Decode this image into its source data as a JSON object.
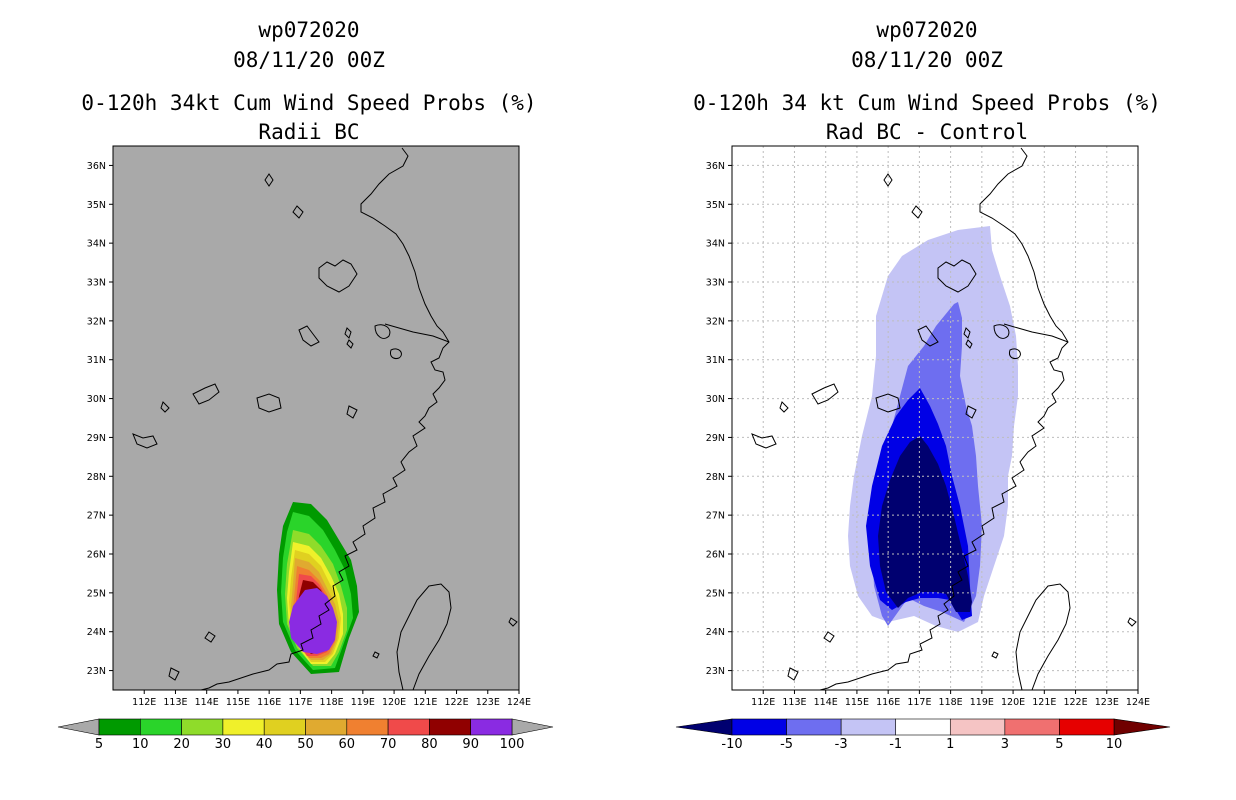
{
  "left_panel": {
    "storm_id": "wp072020",
    "datetime": "08/11/20 00Z",
    "title": "0-120h 34kt Cum Wind Speed Probs (%)",
    "subtitle": "Radii BC",
    "background_color": "#a9a9a9",
    "colorbar": {
      "labels": [
        "5",
        "10",
        "20",
        "30",
        "40",
        "50",
        "60",
        "70",
        "80",
        "90",
        "100"
      ],
      "colors": [
        "#009a00",
        "#2ad42a",
        "#8fdc2a",
        "#f0f02a",
        "#e0d020",
        "#e0aa30",
        "#f08030",
        "#f04a4a",
        "#900000",
        "#8a2be2"
      ]
    }
  },
  "right_panel": {
    "storm_id": "wp072020",
    "datetime": "08/11/20 00Z",
    "title": "0-120h 34 kt Cum Wind Speed Probs (%)",
    "subtitle": "Rad BC - Control",
    "background_color": "#ffffff",
    "colorbar": {
      "labels": [
        "-10",
        "-5",
        "-3",
        "-1",
        "1",
        "3",
        "5",
        "10"
      ],
      "colors": [
        "#0000e6",
        "#6e6ef0",
        "#c4c4f5",
        "#ffffff",
        "#f5c4c4",
        "#f07070",
        "#e60000"
      ],
      "end_colors": [
        "#000070",
        "#700000"
      ]
    }
  },
  "map_axes": {
    "lon_labels": [
      "112E",
      "113E",
      "114E",
      "115E",
      "116E",
      "117E",
      "118E",
      "119E",
      "120E",
      "121E",
      "122E",
      "123E",
      "124E"
    ],
    "lat_labels": [
      "23N",
      "24N",
      "25N",
      "26N",
      "27N",
      "28N",
      "29N",
      "30N",
      "31N",
      "32N",
      "33N",
      "34N",
      "35N",
      "36N"
    ],
    "lon_range": [
      111.0,
      124.0
    ],
    "lat_range": [
      22.5,
      36.5
    ]
  },
  "icons": {
    "coastline": "coastline-outline",
    "taiwan": "taiwan-outline"
  }
}
